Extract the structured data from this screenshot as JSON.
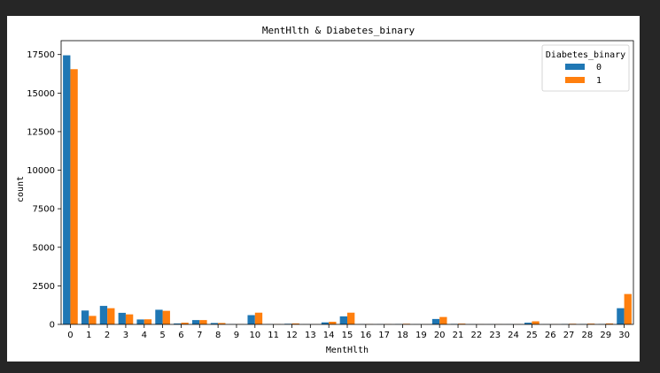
{
  "chart_data": {
    "type": "bar",
    "title": "MentHlth & Diabetes_binary",
    "xlabel": "MentHlth",
    "ylabel": "count",
    "categories": [
      "0",
      "1",
      "2",
      "3",
      "4",
      "5",
      "6",
      "7",
      "8",
      "9",
      "10",
      "11",
      "12",
      "13",
      "14",
      "15",
      "16",
      "17",
      "18",
      "19",
      "20",
      "21",
      "22",
      "23",
      "24",
      "25",
      "26",
      "27",
      "28",
      "29",
      "30"
    ],
    "series": [
      {
        "name": "0",
        "color": "#1f77b4",
        "values": [
          17450,
          900,
          1200,
          750,
          320,
          950,
          60,
          280,
          90,
          10,
          600,
          10,
          40,
          5,
          130,
          520,
          10,
          10,
          20,
          5,
          350,
          30,
          5,
          5,
          5,
          110,
          5,
          20,
          20,
          20,
          1050
        ]
      },
      {
        "name": "1",
        "color": "#ff7f0e",
        "values": [
          16550,
          550,
          1050,
          650,
          330,
          880,
          110,
          280,
          90,
          15,
          760,
          15,
          60,
          5,
          170,
          760,
          15,
          15,
          40,
          5,
          480,
          50,
          10,
          10,
          10,
          200,
          10,
          40,
          50,
          60,
          1970
        ]
      }
    ],
    "ylim": [
      0,
      18400
    ],
    "yticks": [
      0,
      2500,
      5000,
      7500,
      10000,
      12500,
      15000,
      17500
    ],
    "legend": {
      "title": "Diabetes_binary",
      "placement": "top-right"
    },
    "grid": false
  }
}
